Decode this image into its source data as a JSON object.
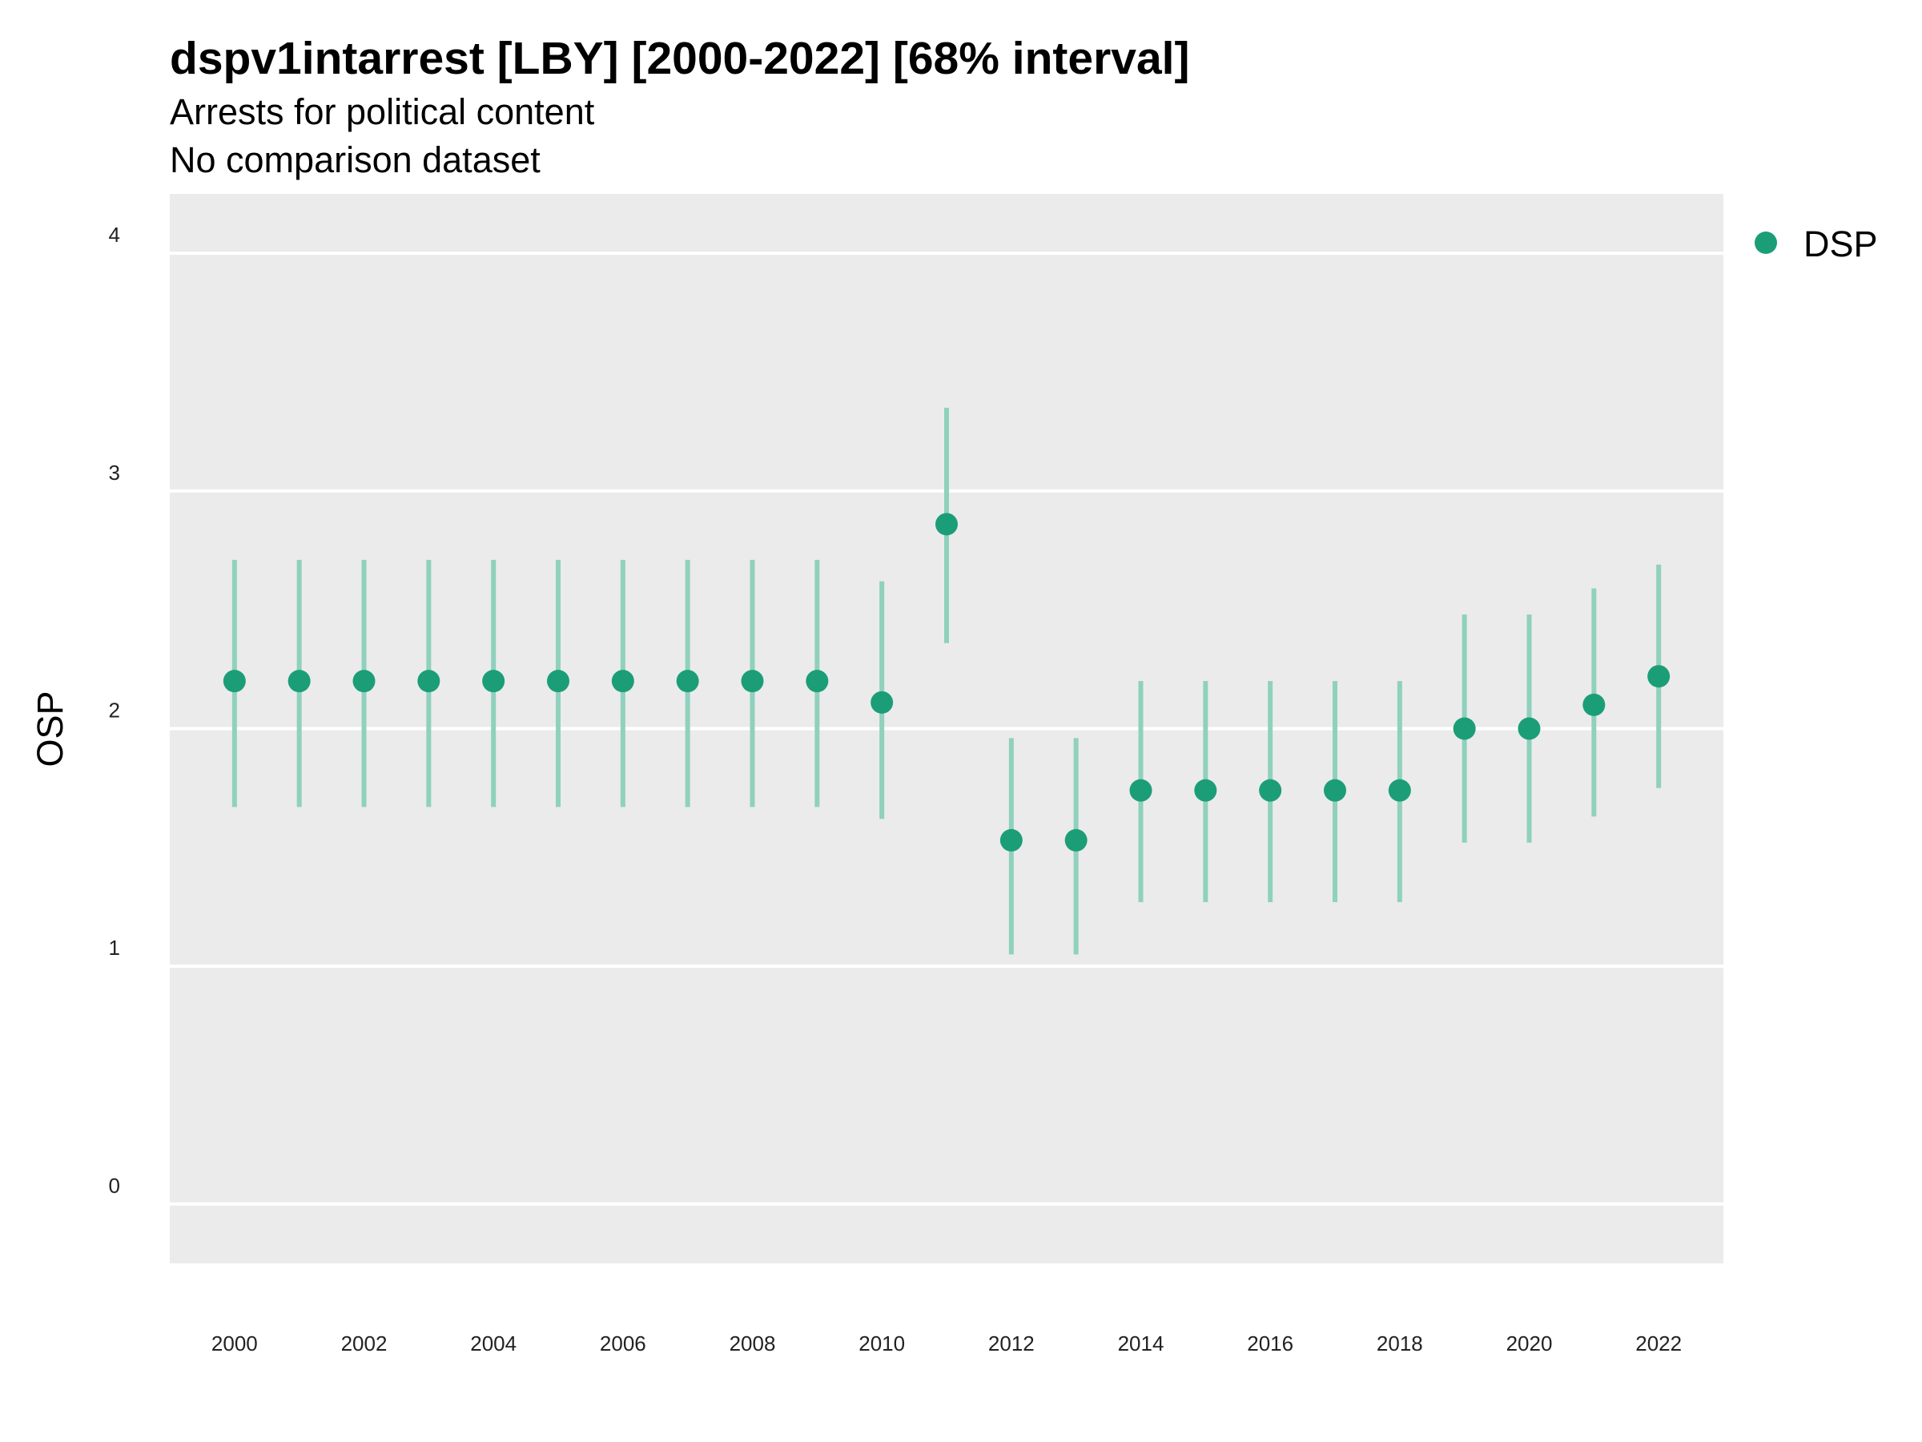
{
  "chart_data": {
    "type": "scatter",
    "title": "dspv1intarrest [LBY] [2000-2022] [68% interval]",
    "subtitle": "Arrests for political content",
    "subtitle2": "No comparison dataset",
    "ylabel": "OSP",
    "xlabel": "",
    "ylim": [
      -0.25,
      4.25
    ],
    "xlim": [
      1999,
      2023
    ],
    "y_ticks": [
      0,
      1,
      2,
      3,
      4
    ],
    "x_ticks": [
      2000,
      2002,
      2004,
      2006,
      2008,
      2010,
      2012,
      2014,
      2016,
      2018,
      2020,
      2022
    ],
    "grid": true,
    "legend_position": "right",
    "colors": {
      "point": "#1b9e77",
      "interval": "#8fd1bc",
      "panel": "#ebebeb",
      "grid": "#ffffff"
    },
    "series": [
      {
        "name": "DSP",
        "x": [
          2000,
          2001,
          2002,
          2003,
          2004,
          2005,
          2006,
          2007,
          2008,
          2009,
          2010,
          2011,
          2012,
          2013,
          2014,
          2015,
          2016,
          2017,
          2018,
          2019,
          2020,
          2021,
          2022
        ],
        "y": [
          2.2,
          2.2,
          2.2,
          2.2,
          2.2,
          2.2,
          2.2,
          2.2,
          2.2,
          2.2,
          2.11,
          2.86,
          1.53,
          1.53,
          1.74,
          1.74,
          1.74,
          1.74,
          1.74,
          2.0,
          2.0,
          2.1,
          2.22
        ],
        "lower": [
          1.67,
          1.67,
          1.67,
          1.67,
          1.67,
          1.67,
          1.67,
          1.67,
          1.67,
          1.67,
          1.62,
          2.36,
          1.05,
          1.05,
          1.27,
          1.27,
          1.27,
          1.27,
          1.27,
          1.52,
          1.52,
          1.63,
          1.75
        ],
        "upper": [
          2.71,
          2.71,
          2.71,
          2.71,
          2.71,
          2.71,
          2.71,
          2.71,
          2.71,
          2.71,
          2.62,
          3.35,
          1.96,
          1.96,
          2.2,
          2.2,
          2.2,
          2.2,
          2.2,
          2.48,
          2.48,
          2.59,
          2.69
        ]
      }
    ]
  }
}
